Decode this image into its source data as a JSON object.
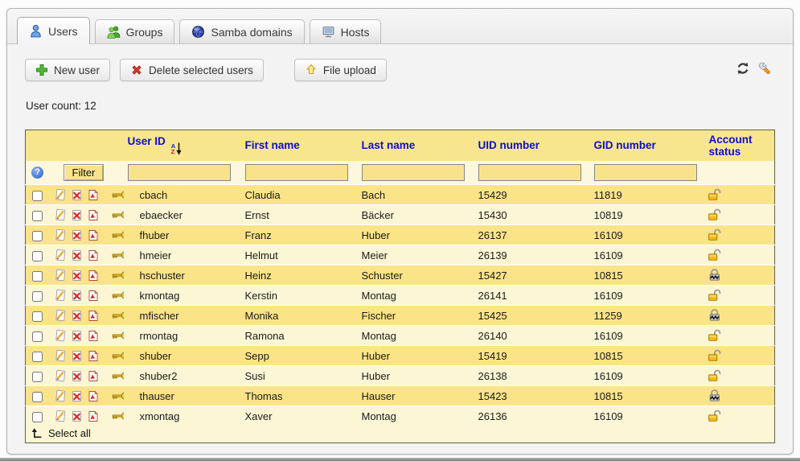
{
  "tabs": [
    {
      "label": "Users",
      "active": true
    },
    {
      "label": "Groups",
      "active": false
    },
    {
      "label": "Samba domains",
      "active": false
    },
    {
      "label": "Hosts",
      "active": false
    }
  ],
  "toolbar": {
    "new_user_label": "New user",
    "delete_label": "Delete selected users",
    "upload_label": "File upload"
  },
  "user_count": {
    "label": "User count:",
    "value": "12"
  },
  "table": {
    "columns": [
      "User ID",
      "First name",
      "Last name",
      "UID number",
      "GID number",
      "Account status"
    ],
    "sort_icon": {
      "top": "A",
      "bottom": "Z"
    },
    "help_label": "?",
    "filter_button_label": "Filter",
    "select_all_label": "Select all",
    "rows": [
      {
        "user_id": "cbach",
        "first_name": "Claudia",
        "last_name": "Bach",
        "uid_number": "15429",
        "gid_number": "11819",
        "account_status": "unlocked"
      },
      {
        "user_id": "ebaecker",
        "first_name": "Ernst",
        "last_name": "Bäcker",
        "uid_number": "15430",
        "gid_number": "10819",
        "account_status": "unlocked"
      },
      {
        "user_id": "fhuber",
        "first_name": "Franz",
        "last_name": "Huber",
        "uid_number": "26137",
        "gid_number": "16109",
        "account_status": "unlocked"
      },
      {
        "user_id": "hmeier",
        "first_name": "Helmut",
        "last_name": "Meier",
        "uid_number": "26139",
        "gid_number": "16109",
        "account_status": "unlocked"
      },
      {
        "user_id": "hschuster",
        "first_name": "Heinz",
        "last_name": "Schuster",
        "uid_number": "15427",
        "gid_number": "10815",
        "account_status": "locked"
      },
      {
        "user_id": "kmontag",
        "first_name": "Kerstin",
        "last_name": "Montag",
        "uid_number": "26141",
        "gid_number": "16109",
        "account_status": "unlocked"
      },
      {
        "user_id": "mfischer",
        "first_name": "Monika",
        "last_name": "Fischer",
        "uid_number": "15425",
        "gid_number": "11259",
        "account_status": "locked"
      },
      {
        "user_id": "rmontag",
        "first_name": "Ramona",
        "last_name": "Montag",
        "uid_number": "26140",
        "gid_number": "16109",
        "account_status": "unlocked"
      },
      {
        "user_id": "shuber",
        "first_name": "Sepp",
        "last_name": "Huber",
        "uid_number": "15419",
        "gid_number": "10815",
        "account_status": "unlocked"
      },
      {
        "user_id": "shuber2",
        "first_name": "Susi",
        "last_name": "Huber",
        "uid_number": "26138",
        "gid_number": "16109",
        "account_status": "unlocked"
      },
      {
        "user_id": "thauser",
        "first_name": "Thomas",
        "last_name": "Hauser",
        "uid_number": "15423",
        "gid_number": "10815",
        "account_status": "locked"
      },
      {
        "user_id": "xmontag",
        "first_name": "Xaver",
        "last_name": "Montag",
        "uid_number": "26136",
        "gid_number": "16109",
        "account_status": "unlocked"
      }
    ]
  },
  "colors": {
    "header-bg": "#f8e68e",
    "header-text": "#0d0dd6",
    "row-dark": "#fbe387",
    "row-light": "#fdf6d5",
    "filter-bg": "#fdf8dd",
    "filter-input-bg": "#f9e38a",
    "table-border": "#63603a"
  }
}
